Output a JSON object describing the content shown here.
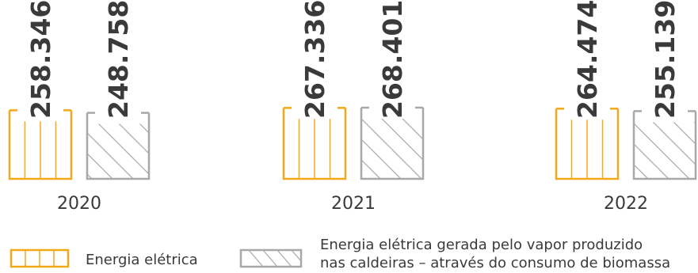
{
  "chart_data": {
    "type": "bar",
    "categories": [
      "2020",
      "2021",
      "2022"
    ],
    "series": [
      {
        "name": "Energia elétrica",
        "values": [
          258346,
          267336,
          264474
        ],
        "value_labels": [
          "258.346",
          "267.336",
          "264.474"
        ]
      },
      {
        "name": "Energia elétrica gerada pelo vapor produzido nas caldeiras – através do consumo de biomassa",
        "name_lines": [
          "Energia elétrica gerada pelo vapor produzido",
          "nas caldeiras – através do consumo de biomassa"
        ],
        "values": [
          248758,
          268401,
          255139
        ],
        "value_labels": [
          "248.758",
          "268.401",
          "255.139"
        ]
      }
    ],
    "legend": "bottom",
    "grid": false,
    "colors": {
      "series1": "#f3a81a",
      "series2": "#a8a8a8",
      "text": "#3a3a3a"
    }
  }
}
